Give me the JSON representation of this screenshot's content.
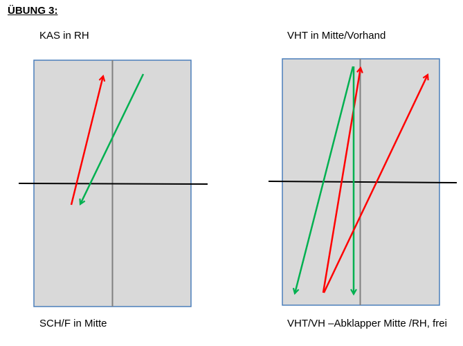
{
  "title": "ÜBUNG 3:",
  "panels": [
    {
      "top_label": "KAS in RH",
      "bottom_label": "SCH/F in Mitte"
    },
    {
      "top_label": "VHT in Mitte/Vorhand",
      "bottom_label": "VHT/VH –Abklapper Mitte /RH, frei"
    }
  ],
  "colors": {
    "table_fill": "#d9d9d9",
    "table_border": "#4a7ebb",
    "center_line": "#808080",
    "net_line": "#000000",
    "arrow_red": "#ff0000",
    "arrow_green": "#00b050"
  }
}
